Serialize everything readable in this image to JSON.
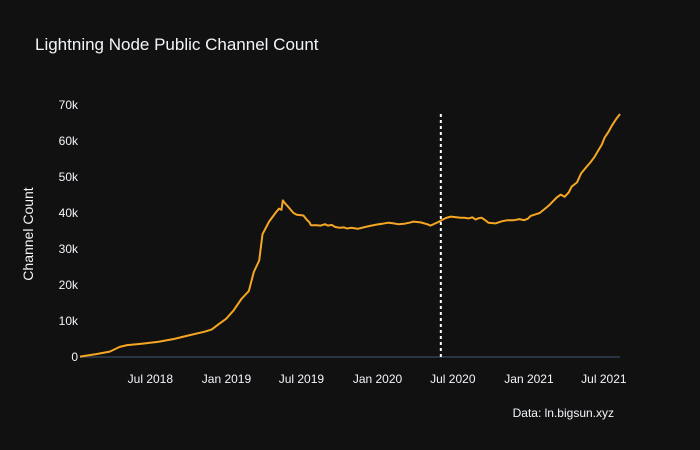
{
  "chart_data": {
    "type": "line",
    "title": "Lightning Node Public Channel Count",
    "xlabel": "",
    "ylabel": "Channel Count",
    "source_note": "Data: ln.bigsun.xyz",
    "grid": false,
    "background_color": "#111111",
    "line_color": "#f5a623",
    "zero_line_color": "#283442",
    "marker_line_color": "#ffffff",
    "xlim": [
      "2018-01-12",
      "2021-08-09"
    ],
    "ylim": [
      0,
      70000
    ],
    "y_ticks": [
      0,
      10000,
      20000,
      30000,
      40000,
      50000,
      60000,
      70000
    ],
    "y_tick_labels": [
      "0",
      "10k",
      "20k",
      "30k",
      "40k",
      "50k",
      "60k",
      "70k"
    ],
    "x_ticks": [
      "2018-07-01",
      "2019-01-01",
      "2019-07-01",
      "2020-01-01",
      "2020-07-01",
      "2021-01-01",
      "2021-07-01"
    ],
    "x_tick_labels": [
      "Jul 2018",
      "Jan 2019",
      "Jul 2019",
      "Jan 2020",
      "Jul 2020",
      "Jan 2021",
      "Jul 2021"
    ],
    "vertical_marker": {
      "x": "2020-06-02",
      "style": "dashed",
      "y_top": 67500
    },
    "series": [
      {
        "x": [
          "2018-01-12",
          "2018-02-20",
          "2018-03-25",
          "2018-04-18",
          "2018-05-06",
          "2018-06-10",
          "2018-07-19",
          "2018-08-27",
          "2018-10-02",
          "2018-11-08",
          "2018-11-26",
          "2018-12-14",
          "2018-12-31",
          "2019-01-18",
          "2019-02-06",
          "2019-02-24",
          "2019-03-08",
          "2019-03-21",
          "2019-03-29",
          "2019-04-14",
          "2019-04-30",
          "2019-05-08",
          "2019-05-14",
          "2019-05-17",
          "2019-05-23",
          "2019-05-29",
          "2019-06-06",
          "2019-06-12",
          "2019-06-20",
          "2019-07-06",
          "2019-07-14",
          "2019-07-20",
          "2019-07-24",
          "2019-08-07",
          "2019-08-17",
          "2019-08-27",
          "2019-09-03",
          "2019-09-12",
          "2019-09-21",
          "2019-10-02",
          "2019-10-12",
          "2019-10-19",
          "2019-10-29",
          "2019-11-14",
          "2019-11-21",
          "2019-12-02",
          "2019-12-17",
          "2019-12-31",
          "2020-01-12",
          "2020-01-27",
          "2020-02-05",
          "2020-02-20",
          "2020-03-05",
          "2020-03-18",
          "2020-03-28",
          "2020-04-14",
          "2020-04-30",
          "2020-05-08",
          "2020-05-27",
          "2020-06-07",
          "2020-06-14",
          "2020-06-26",
          "2020-07-20",
          "2020-07-28",
          "2020-08-08",
          "2020-08-17",
          "2020-08-25",
          "2020-08-31",
          "2020-09-08",
          "2020-09-15",
          "2020-09-25",
          "2020-10-12",
          "2020-10-27",
          "2020-11-10",
          "2020-11-26",
          "2020-12-09",
          "2020-12-20",
          "2020-12-29",
          "2021-01-05",
          "2021-01-19",
          "2021-01-27",
          "2021-02-12",
          "2021-02-20",
          "2021-03-09",
          "2021-03-19",
          "2021-03-28",
          "2021-04-07",
          "2021-04-14",
          "2021-04-27",
          "2021-05-07",
          "2021-05-20",
          "2021-05-29",
          "2021-06-08",
          "2021-06-13",
          "2021-06-26",
          "2021-07-03",
          "2021-07-12",
          "2021-07-19",
          "2021-07-30",
          "2021-08-09"
        ],
        "values": [
          100,
          800,
          1500,
          2800,
          3300,
          3700,
          4200,
          5000,
          6000,
          7000,
          7600,
          9200,
          10600,
          12900,
          16100,
          18300,
          23600,
          26800,
          34100,
          37600,
          40100,
          41200,
          40900,
          43500,
          42600,
          41900,
          40800,
          40000,
          39500,
          39300,
          38100,
          37500,
          36600,
          36600,
          36500,
          36900,
          36500,
          36700,
          36100,
          35900,
          36000,
          35700,
          35900,
          35600,
          35800,
          36100,
          36500,
          36800,
          37000,
          37300,
          37200,
          36900,
          37000,
          37300,
          37600,
          37400,
          36900,
          36500,
          37500,
          38200,
          38600,
          39000,
          38700,
          38700,
          38500,
          38800,
          38200,
          38500,
          38700,
          38200,
          37300,
          37100,
          37700,
          38000,
          38000,
          38300,
          38000,
          38400,
          39200,
          39700,
          40000,
          41500,
          42300,
          44300,
          45100,
          44500,
          45700,
          47300,
          48500,
          51000,
          52800,
          54000,
          55500,
          56500,
          59000,
          61000,
          62500,
          64000,
          66000,
          67500
        ]
      }
    ]
  }
}
